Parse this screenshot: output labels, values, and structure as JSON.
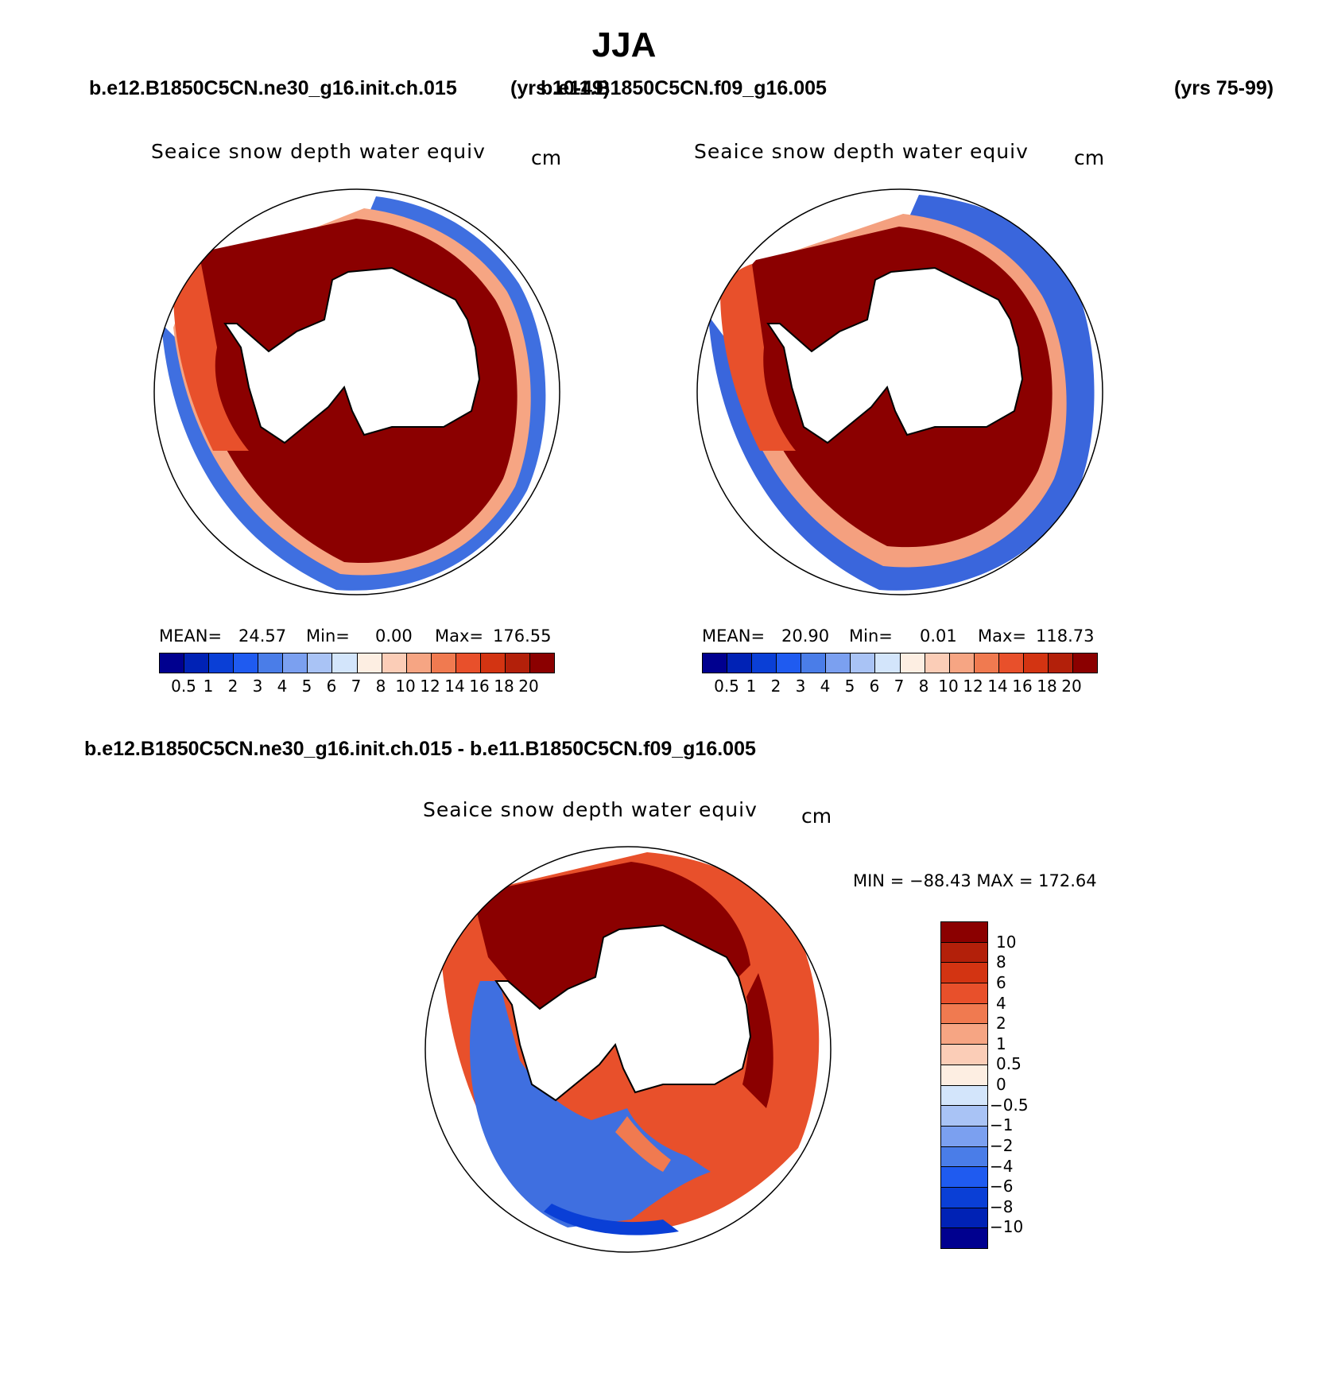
{
  "title": "JJA",
  "header": {
    "case1": "b.e12.B1850C5CN.ne30_g16.init.ch.015",
    "case1_years": "(yrs 10-49)",
    "case2": "b.e11.B1850C5CN.f09_g16.005",
    "case2_years": "(yrs 75-99)",
    "diff_title": "b.e12.B1850C5CN.ne30_g16.init.ch.015 - b.e11.B1850C5CN.f09_g16.005"
  },
  "chart_data": [
    {
      "type": "heatmap",
      "projection": "south polar stereographic",
      "title": "Seaice snow depth water equiv",
      "units": "cm",
      "stats": {
        "mean_label": "MEAN=",
        "mean": "24.57",
        "min_label": "Min=",
        "min": "0.00",
        "max_label": "Max=",
        "max": "176.55"
      },
      "colorbar": {
        "tick_labels": [
          "0.5",
          "1",
          "2",
          "3",
          "4",
          "5",
          "6",
          "7",
          "8",
          "10",
          "12",
          "14",
          "16",
          "18",
          "20"
        ],
        "colors": [
          "#00008f",
          "#0022b5",
          "#0a3fd6",
          "#1f5bf0",
          "#4a7de8",
          "#7ba0f0",
          "#a9c3f5",
          "#d3e5fb",
          "#fdeee2",
          "#fbcdb7",
          "#f6a583",
          "#f07a50",
          "#e8502b",
          "#d33412",
          "#b3200a",
          "#8b0000"
        ]
      }
    },
    {
      "type": "heatmap",
      "projection": "south polar stereographic",
      "title": "Seaice snow depth water equiv",
      "units": "cm",
      "stats": {
        "mean_label": "MEAN=",
        "mean": "20.90",
        "min_label": "Min=",
        "min": "0.01",
        "max_label": "Max=",
        "max": "118.73"
      },
      "colorbar": {
        "tick_labels": [
          "0.5",
          "1",
          "2",
          "3",
          "4",
          "5",
          "6",
          "7",
          "8",
          "10",
          "12",
          "14",
          "16",
          "18",
          "20"
        ],
        "colors": [
          "#00008f",
          "#0022b5",
          "#0a3fd6",
          "#1f5bf0",
          "#4a7de8",
          "#7ba0f0",
          "#a9c3f5",
          "#d3e5fb",
          "#fdeee2",
          "#fbcdb7",
          "#f6a583",
          "#f07a50",
          "#e8502b",
          "#d33412",
          "#b3200a",
          "#8b0000"
        ]
      }
    },
    {
      "type": "heatmap",
      "projection": "south polar stereographic",
      "title": "Seaice snow depth water equiv",
      "units": "cm",
      "minmax_text": "MIN = −88.43 MAX = 172.64",
      "colorbar": {
        "tick_labels": [
          "10",
          "8",
          "6",
          "4",
          "2",
          "1",
          "0.5",
          "0",
          "−0.5",
          "−1",
          "−2",
          "−4",
          "−6",
          "−8",
          "−10"
        ],
        "colors": [
          "#8b0000",
          "#b3200a",
          "#d33412",
          "#e8502b",
          "#f07a50",
          "#f6a583",
          "#fbcdb7",
          "#fdeee2",
          "#d3e5fb",
          "#a9c3f5",
          "#7ba0f0",
          "#4a7de8",
          "#1f5bf0",
          "#0a3fd6",
          "#0022b5",
          "#00008f"
        ]
      }
    }
  ]
}
